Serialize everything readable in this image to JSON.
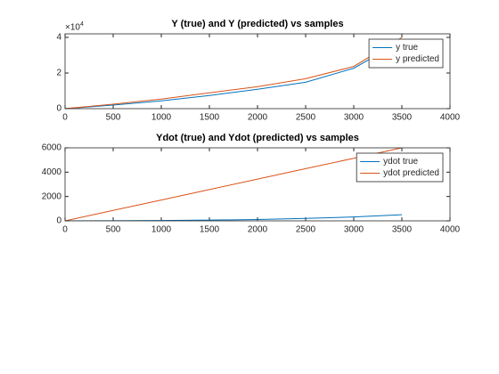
{
  "chart_data": [
    {
      "type": "line",
      "title": "Y (true) and Y (predicted) vs samples",
      "x": [
        0,
        500,
        1000,
        1500,
        2000,
        2500,
        3000,
        3500
      ],
      "series": [
        {
          "name": "y true",
          "color": "#0072BD",
          "values": [
            0,
            2000,
            4400,
            7400,
            10900,
            14800,
            22700,
            38000
          ]
        },
        {
          "name": "y predicted",
          "color": "#D95319",
          "values": [
            0,
            2500,
            5400,
            8900,
            12300,
            16800,
            23700,
            40000
          ]
        }
      ],
      "xlim": [
        0,
        4000
      ],
      "xticks": [
        0,
        500,
        1000,
        1500,
        2000,
        2500,
        3000,
        3500,
        4000
      ],
      "ylim": [
        0,
        42000
      ],
      "yticks": [
        {
          "value": 0,
          "label": "0"
        },
        {
          "value": 20000,
          "label": "2"
        },
        {
          "value": 40000,
          "label": "4"
        }
      ],
      "y_multiplier": {
        "base": "×10",
        "exponent": "4"
      },
      "legend": "northeast",
      "grid": false
    },
    {
      "type": "line",
      "title": "Ydot (true) and Ydot (predicted) vs samples",
      "x": [
        0,
        500,
        1000,
        1500,
        2000,
        2500,
        3000,
        3500
      ],
      "series": [
        {
          "name": "ydot true",
          "color": "#0072BD",
          "values": [
            0,
            10,
            30,
            60,
            110,
            200,
            320,
            500
          ]
        },
        {
          "name": "ydot predicted",
          "color": "#D95319",
          "values": [
            0,
            860,
            1710,
            2570,
            3430,
            4290,
            5140,
            6000
          ]
        }
      ],
      "xlim": [
        0,
        4000
      ],
      "xticks": [
        0,
        500,
        1000,
        1500,
        2000,
        2500,
        3000,
        3500,
        4000
      ],
      "ylim": [
        0,
        6000
      ],
      "yticks": [
        0,
        2000,
        4000,
        6000
      ],
      "legend": "northeast",
      "grid": false
    }
  ]
}
